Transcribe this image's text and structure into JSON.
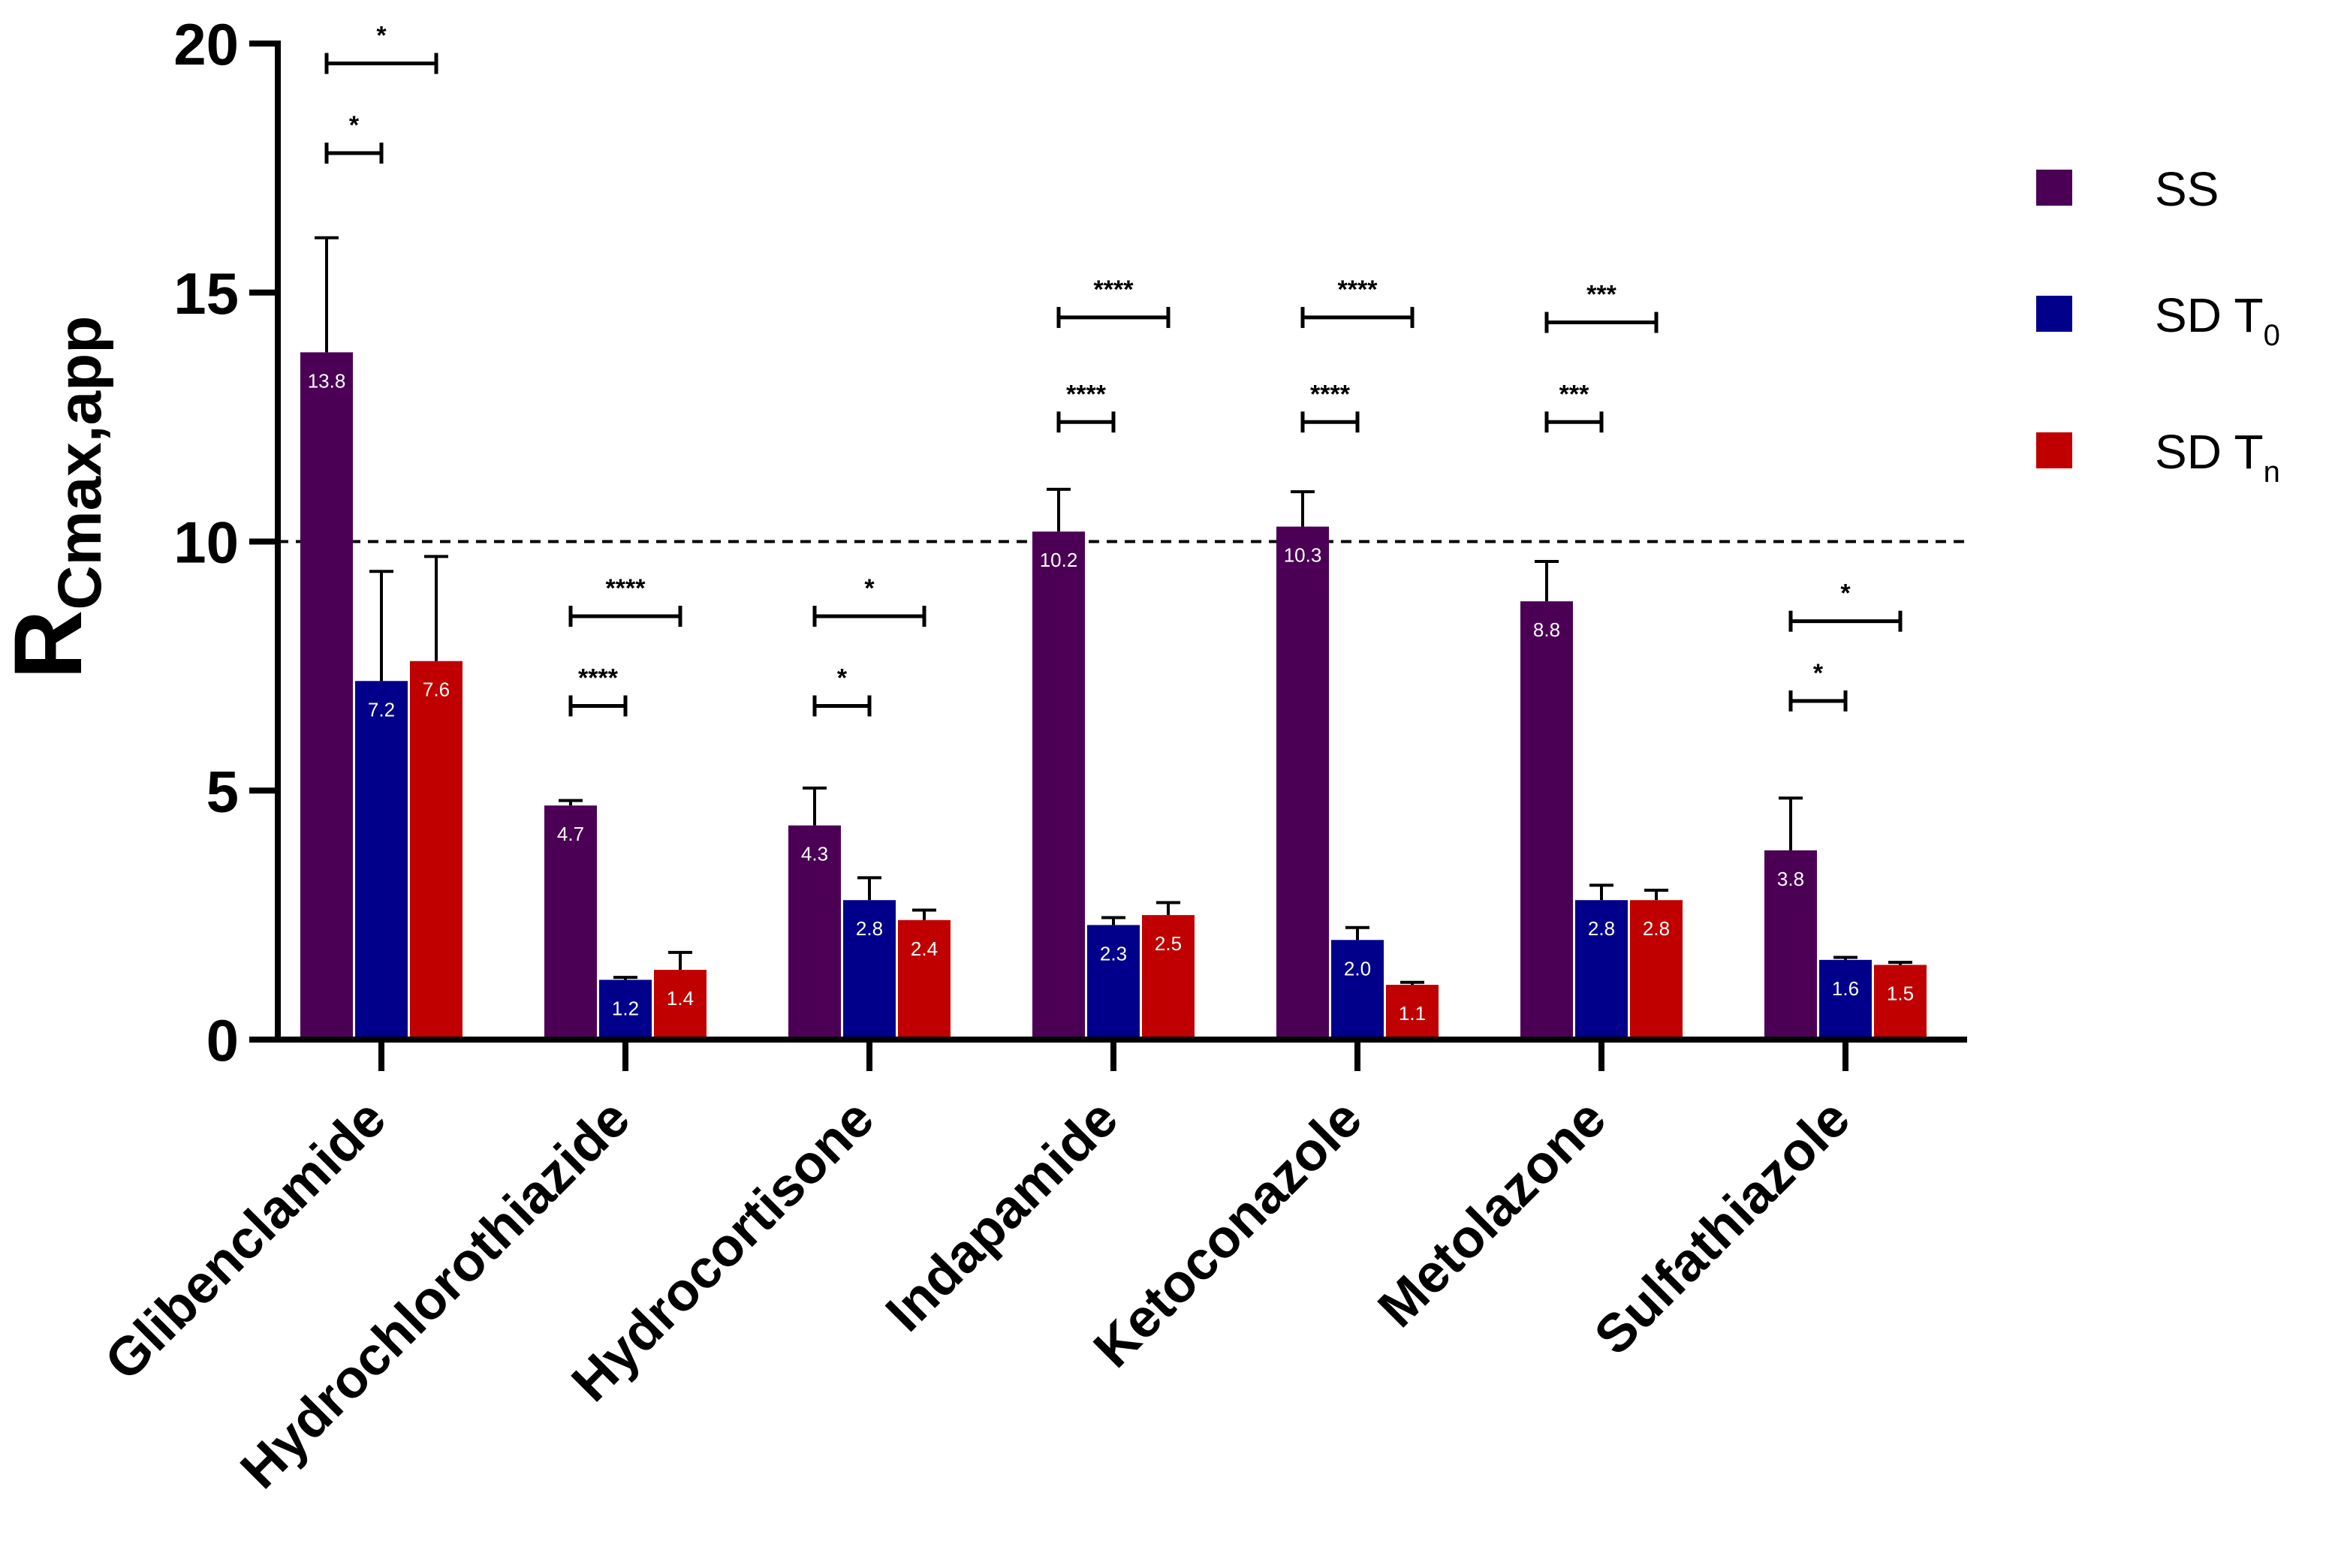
{
  "chart_data": {
    "type": "bar",
    "ylabel_main": "R",
    "ylabel_sub": "Cmax,app",
    "ylim": [
      0,
      20
    ],
    "yticks": [
      0,
      5,
      10,
      15,
      20
    ],
    "reference_line": 10,
    "categories": [
      "Glibenclamide",
      "Hydrochlorothiazide",
      "Hydrocortisone",
      "Indapamide",
      "Ketoconazole",
      "Metolazone",
      "Sulfathiazole"
    ],
    "series": [
      {
        "name": "SS",
        "legend_main": "SS",
        "legend_sub": "",
        "color": "#4B0055",
        "values": [
          13.8,
          4.7,
          4.3,
          10.2,
          10.3,
          8.8,
          3.8
        ],
        "labels": [
          "13.8",
          "4.7",
          "4.3",
          "10.2",
          "10.3",
          "8.8",
          "3.8"
        ],
        "errors": [
          2.3,
          0.1,
          0.75,
          0.85,
          0.7,
          0.8,
          1.05
        ]
      },
      {
        "name": "SD T0",
        "legend_main": "SD T",
        "legend_sub": "0",
        "color": "#00008B",
        "values": [
          7.2,
          1.2,
          2.8,
          2.3,
          2.0,
          2.8,
          1.6
        ],
        "labels": [
          "7.2",
          "1.2",
          "2.8",
          "2.3",
          "2.0",
          "2.8",
          "1.6"
        ],
        "errors": [
          2.2,
          0.05,
          0.45,
          0.15,
          0.25,
          0.3,
          0.05
        ]
      },
      {
        "name": "SD Tn",
        "legend_main": "SD T",
        "legend_sub": "n",
        "color": "#C00000",
        "values": [
          7.6,
          1.4,
          2.4,
          2.5,
          1.1,
          2.8,
          1.5
        ],
        "labels": [
          "7.6",
          "1.4",
          "2.4",
          "2.5",
          "1.1",
          "2.8",
          "1.5"
        ],
        "errors": [
          2.1,
          0.35,
          0.2,
          0.25,
          0.05,
          0.2,
          0.05
        ]
      }
    ],
    "significance": [
      {
        "category": 0,
        "from": 0,
        "to": 1,
        "y": 17.8,
        "text": "*"
      },
      {
        "category": 0,
        "from": 0,
        "to": 2,
        "y": 19.6,
        "text": "*"
      },
      {
        "category": 1,
        "from": 0,
        "to": 1,
        "y": 6.7,
        "text": "****"
      },
      {
        "category": 1,
        "from": 0,
        "to": 2,
        "y": 8.5,
        "text": "****"
      },
      {
        "category": 2,
        "from": 0,
        "to": 1,
        "y": 6.7,
        "text": "*"
      },
      {
        "category": 2,
        "from": 0,
        "to": 2,
        "y": 8.5,
        "text": "*"
      },
      {
        "category": 3,
        "from": 0,
        "to": 1,
        "y": 12.4,
        "text": "****"
      },
      {
        "category": 3,
        "from": 0,
        "to": 2,
        "y": 14.5,
        "text": "****"
      },
      {
        "category": 4,
        "from": 0,
        "to": 1,
        "y": 12.4,
        "text": "****"
      },
      {
        "category": 4,
        "from": 0,
        "to": 2,
        "y": 14.5,
        "text": "****"
      },
      {
        "category": 5,
        "from": 0,
        "to": 1,
        "y": 12.4,
        "text": "***"
      },
      {
        "category": 5,
        "from": 0,
        "to": 2,
        "y": 14.4,
        "text": "***"
      },
      {
        "category": 6,
        "from": 0,
        "to": 1,
        "y": 6.8,
        "text": "*"
      },
      {
        "category": 6,
        "from": 0,
        "to": 2,
        "y": 8.4,
        "text": "*"
      }
    ]
  }
}
